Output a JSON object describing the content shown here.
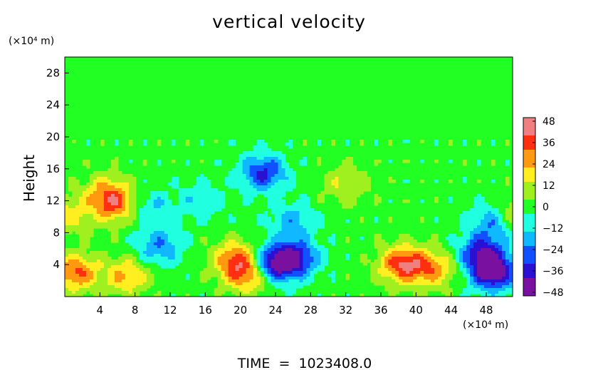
{
  "chart_data": {
    "type": "heatmap",
    "title": "vertical velocity",
    "xlabel": "",
    "ylabel": "Height",
    "x_unit": "(×10⁴ m)",
    "y_unit": "(×10⁴ m)",
    "footer": "TIME  =  1023408.0",
    "xlim": [
      0,
      51
    ],
    "ylim": [
      0,
      30
    ],
    "x_ticks": [
      "4",
      "8",
      "12",
      "16",
      "20",
      "24",
      "28",
      "32",
      "36",
      "40",
      "44",
      "48"
    ],
    "y_ticks": [
      "4",
      "8",
      "12",
      "16",
      "20",
      "24",
      "28"
    ],
    "colorbar": {
      "range": [
        -50,
        50
      ],
      "ticks": [
        "48",
        "36",
        "24",
        "12",
        "0",
        "−12",
        "−24",
        "−36",
        "−48"
      ]
    },
    "colors": {
      "background_field": "#22ff22",
      "colormap": [
        "#7a10a0",
        "#2a10d0",
        "#1050ff",
        "#10b8ff",
        "#20ffe0",
        "#22ff22",
        "#a0f020",
        "#ffee20",
        "#ff9a10",
        "#ff3010",
        "#f08080"
      ]
    },
    "features": [
      {
        "sign": "positive",
        "x": 1.2,
        "y": 3.0,
        "amplitude": 34
      },
      {
        "sign": "positive",
        "x": 5.5,
        "y": 11.5,
        "amplitude": 30
      },
      {
        "sign": "positive",
        "x": 4.7,
        "y": 13.2,
        "amplitude": 18
      },
      {
        "sign": "positive",
        "x": 7.0,
        "y": 2.6,
        "amplitude": 24
      },
      {
        "sign": "positive",
        "x": 19.5,
        "y": 4.6,
        "amplitude": 32
      },
      {
        "sign": "positive",
        "x": 21.0,
        "y": 2.7,
        "amplitude": 30
      },
      {
        "sign": "positive",
        "x": 38.5,
        "y": 4.0,
        "amplitude": 40
      },
      {
        "sign": "positive",
        "x": 42.0,
        "y": 3.5,
        "amplitude": 26
      },
      {
        "sign": "positive",
        "x": 50.7,
        "y": 10.2,
        "amplitude": 22
      },
      {
        "sign": "positive",
        "x": 0.2,
        "y": 10.2,
        "amplitude": 18
      },
      {
        "sign": "positive",
        "x": 32.0,
        "y": 14.0,
        "amplitude": 14
      },
      {
        "sign": "negative",
        "x": 23.6,
        "y": 4.0,
        "amplitude": -42
      },
      {
        "sign": "negative",
        "x": 26.2,
        "y": 4.8,
        "amplitude": -38
      },
      {
        "sign": "negative",
        "x": 22.6,
        "y": 15.5,
        "amplitude": -34
      },
      {
        "sign": "negative",
        "x": 48.8,
        "y": 3.0,
        "amplitude": -48
      },
      {
        "sign": "negative",
        "x": 47.5,
        "y": 5.5,
        "amplitude": -36
      },
      {
        "sign": "negative",
        "x": 49.0,
        "y": 9.5,
        "amplitude": -28
      },
      {
        "sign": "negative",
        "x": 10.8,
        "y": 6.2,
        "amplitude": -22
      },
      {
        "sign": "negative",
        "x": 10.0,
        "y": 11.0,
        "amplitude": -14
      },
      {
        "sign": "negative",
        "x": 15.5,
        "y": 12.0,
        "amplitude": -12
      },
      {
        "sign": "negative",
        "x": 26.0,
        "y": 9.5,
        "amplitude": -18
      }
    ]
  }
}
